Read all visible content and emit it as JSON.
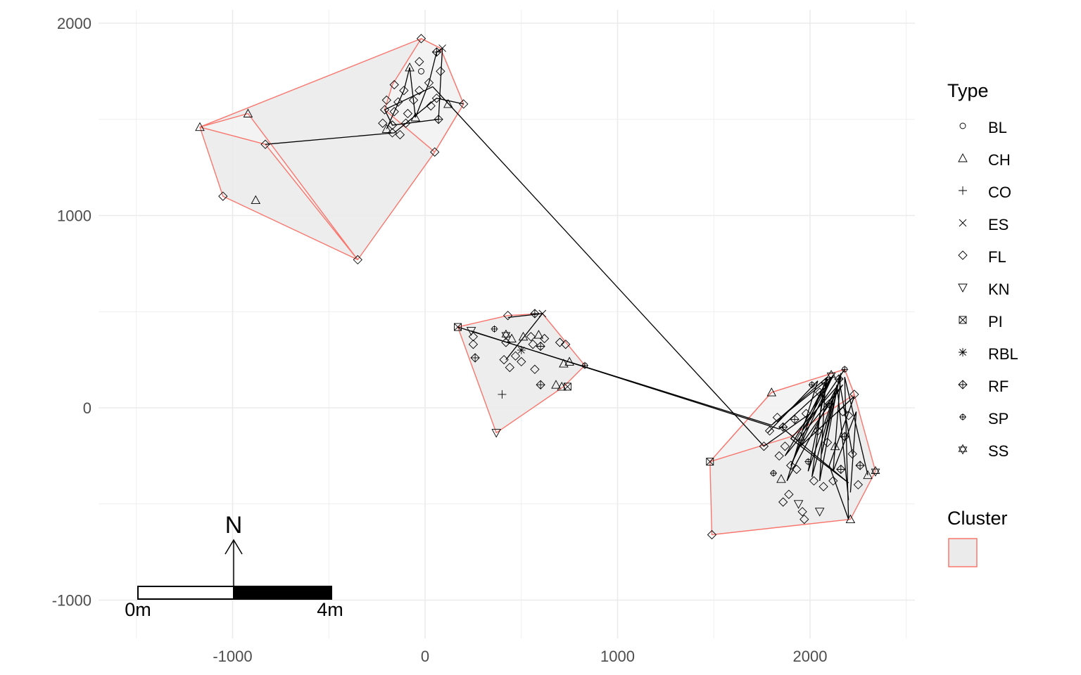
{
  "chart_data": {
    "type": "scatter",
    "title": "",
    "xlabel": "",
    "ylabel": "",
    "xlim": [
      -1670,
      2560
    ],
    "ylim": [
      -1180,
      2080
    ],
    "grid": true,
    "x_ticks": [
      -1000,
      0,
      1000,
      2000
    ],
    "x_tick_labels": [
      "-1000",
      "0",
      "1000",
      "2000"
    ],
    "y_ticks": [
      -1000,
      0,
      1000,
      2000
    ],
    "y_tick_labels": [
      "-1000",
      "0",
      "1000",
      "2000"
    ],
    "legend_position": "right",
    "legend_type_title": "Type",
    "legend_cluster_title": "Cluster",
    "types": [
      {
        "code": "BL",
        "symbol": "circle"
      },
      {
        "code": "CH",
        "symbol": "triangle-up"
      },
      {
        "code": "CO",
        "symbol": "plus"
      },
      {
        "code": "ES",
        "symbol": "cross"
      },
      {
        "code": "FL",
        "symbol": "diamond"
      },
      {
        "code": "KN",
        "symbol": "triangle-down"
      },
      {
        "code": "PI",
        "symbol": "square-cross"
      },
      {
        "code": "RBL",
        "symbol": "asterisk"
      },
      {
        "code": "RF",
        "symbol": "diamond-plus"
      },
      {
        "code": "SP",
        "symbol": "circle-plus"
      },
      {
        "code": "SS",
        "symbol": "star-of-david"
      }
    ],
    "colors": {
      "hull_stroke": "#f8766d",
      "hull_fill": "#ebebeb",
      "hull_fill_light": "#f3f3f3",
      "grid": "#ebebeb",
      "points": "#000000"
    },
    "clusters": [
      {
        "hull": [
          [
            -1170,
            1460
          ],
          [
            -1050,
            1100
          ],
          [
            -350,
            770
          ],
          [
            50,
            1330
          ],
          [
            200,
            1580
          ],
          [
            80,
            1870
          ],
          [
            -20,
            1920
          ]
        ],
        "shade": "dark"
      },
      {
        "hull": [
          [
            -920,
            1530
          ],
          [
            -1170,
            1460
          ],
          [
            -830,
            1370
          ],
          [
            -350,
            770
          ]
        ],
        "shade": "light"
      },
      {
        "hull": [
          [
            -210,
            1550
          ],
          [
            -170,
            1680
          ],
          [
            -20,
            1920
          ],
          [
            80,
            1870
          ],
          [
            200,
            1580
          ],
          [
            50,
            1330
          ]
        ],
        "shade": "light"
      },
      {
        "hull": [
          [
            170,
            420
          ],
          [
            430,
            480
          ],
          [
            610,
            490
          ],
          [
            830,
            220
          ],
          [
            720,
            110
          ],
          [
            370,
            -130
          ]
        ],
        "shade": "dark"
      },
      {
        "hull": [
          [
            1480,
            -280
          ],
          [
            1490,
            -660
          ],
          [
            2210,
            -580
          ],
          [
            2340,
            -330
          ],
          [
            2230,
            70
          ],
          [
            2180,
            200
          ],
          [
            2020,
            150
          ],
          [
            1800,
            80
          ]
        ],
        "shade": "dark"
      },
      {
        "hull": [
          [
            1480,
            -280
          ],
          [
            1800,
            80
          ],
          [
            2020,
            150
          ],
          [
            2180,
            200
          ],
          [
            2230,
            70
          ],
          [
            1900,
            -150
          ]
        ],
        "shade": "light"
      }
    ],
    "points": [
      {
        "x": -1170,
        "y": 1460,
        "type": "CH"
      },
      {
        "x": -920,
        "y": 1530,
        "type": "CH"
      },
      {
        "x": -830,
        "y": 1370,
        "type": "FL"
      },
      {
        "x": -1050,
        "y": 1100,
        "type": "FL"
      },
      {
        "x": -880,
        "y": 1080,
        "type": "CH"
      },
      {
        "x": -350,
        "y": 770,
        "type": "FL"
      },
      {
        "x": -20,
        "y": 1920,
        "type": "FL"
      },
      {
        "x": 60,
        "y": 1850,
        "type": "RF"
      },
      {
        "x": 90,
        "y": 1870,
        "type": "ES"
      },
      {
        "x": -30,
        "y": 1800,
        "type": "FL"
      },
      {
        "x": -80,
        "y": 1770,
        "type": "CH"
      },
      {
        "x": -20,
        "y": 1750,
        "type": "BL"
      },
      {
        "x": 80,
        "y": 1750,
        "type": "FL"
      },
      {
        "x": -160,
        "y": 1680,
        "type": "FL"
      },
      {
        "x": -110,
        "y": 1650,
        "type": "FL"
      },
      {
        "x": -30,
        "y": 1650,
        "type": "FL"
      },
      {
        "x": 20,
        "y": 1690,
        "type": "FL"
      },
      {
        "x": -200,
        "y": 1600,
        "type": "FL"
      },
      {
        "x": -140,
        "y": 1590,
        "type": "FL"
      },
      {
        "x": -60,
        "y": 1600,
        "type": "FL"
      },
      {
        "x": 60,
        "y": 1610,
        "type": "FL"
      },
      {
        "x": 200,
        "y": 1580,
        "type": "FL"
      },
      {
        "x": 120,
        "y": 1580,
        "type": "CH"
      },
      {
        "x": -210,
        "y": 1550,
        "type": "FL"
      },
      {
        "x": -160,
        "y": 1540,
        "type": "FL"
      },
      {
        "x": -90,
        "y": 1530,
        "type": "FL"
      },
      {
        "x": 30,
        "y": 1570,
        "type": "FL"
      },
      {
        "x": -220,
        "y": 1480,
        "type": "FL"
      },
      {
        "x": -170,
        "y": 1470,
        "type": "FL"
      },
      {
        "x": -100,
        "y": 1480,
        "type": "FL"
      },
      {
        "x": -50,
        "y": 1510,
        "type": "CH"
      },
      {
        "x": 70,
        "y": 1500,
        "type": "RF"
      },
      {
        "x": -200,
        "y": 1450,
        "type": "CH"
      },
      {
        "x": -130,
        "y": 1420,
        "type": "FL"
      },
      {
        "x": -170,
        "y": 1430,
        "type": "FL"
      },
      {
        "x": 50,
        "y": 1330,
        "type": "FL"
      },
      {
        "x": 170,
        "y": 420,
        "type": "PI"
      },
      {
        "x": 240,
        "y": 400,
        "type": "KN"
      },
      {
        "x": 360,
        "y": 410,
        "type": "SP"
      },
      {
        "x": 430,
        "y": 480,
        "type": "FL"
      },
      {
        "x": 570,
        "y": 490,
        "type": "RF"
      },
      {
        "x": 610,
        "y": 490,
        "type": "ES"
      },
      {
        "x": 250,
        "y": 370,
        "type": "FL"
      },
      {
        "x": 250,
        "y": 330,
        "type": "FL"
      },
      {
        "x": 260,
        "y": 260,
        "type": "RF"
      },
      {
        "x": 420,
        "y": 380,
        "type": "SS"
      },
      {
        "x": 450,
        "y": 360,
        "type": "CH"
      },
      {
        "x": 420,
        "y": 340,
        "type": "FL"
      },
      {
        "x": 510,
        "y": 370,
        "type": "CH"
      },
      {
        "x": 550,
        "y": 370,
        "type": "FL"
      },
      {
        "x": 590,
        "y": 380,
        "type": "CH"
      },
      {
        "x": 620,
        "y": 360,
        "type": "FL"
      },
      {
        "x": 560,
        "y": 330,
        "type": "FL"
      },
      {
        "x": 600,
        "y": 320,
        "type": "RF"
      },
      {
        "x": 700,
        "y": 340,
        "type": "FL"
      },
      {
        "x": 730,
        "y": 330,
        "type": "FL"
      },
      {
        "x": 500,
        "y": 300,
        "type": "RBL"
      },
      {
        "x": 470,
        "y": 270,
        "type": "FL"
      },
      {
        "x": 410,
        "y": 250,
        "type": "FL"
      },
      {
        "x": 500,
        "y": 240,
        "type": "FL"
      },
      {
        "x": 440,
        "y": 210,
        "type": "FL"
      },
      {
        "x": 570,
        "y": 200,
        "type": "FL"
      },
      {
        "x": 720,
        "y": 230,
        "type": "CH"
      },
      {
        "x": 750,
        "y": 240,
        "type": "CH"
      },
      {
        "x": 830,
        "y": 220,
        "type": "SP"
      },
      {
        "x": 600,
        "y": 120,
        "type": "RF"
      },
      {
        "x": 680,
        "y": 120,
        "type": "CH"
      },
      {
        "x": 710,
        "y": 110,
        "type": "CH"
      },
      {
        "x": 740,
        "y": 110,
        "type": "PI"
      },
      {
        "x": 400,
        "y": 70,
        "type": "CO"
      },
      {
        "x": 370,
        "y": -130,
        "type": "KN"
      },
      {
        "x": 1480,
        "y": -280,
        "type": "PI"
      },
      {
        "x": 1490,
        "y": -660,
        "type": "FL"
      },
      {
        "x": 1800,
        "y": 80,
        "type": "CH"
      },
      {
        "x": 2180,
        "y": 200,
        "type": "SP"
      },
      {
        "x": 2230,
        "y": 70,
        "type": "FL"
      },
      {
        "x": 2340,
        "y": -330,
        "type": "SS"
      },
      {
        "x": 2210,
        "y": -580,
        "type": "CH"
      },
      {
        "x": 1830,
        "y": -50,
        "type": "FL"
      },
      {
        "x": 1860,
        "y": -100,
        "type": "RF"
      },
      {
        "x": 1790,
        "y": -120,
        "type": "FL"
      },
      {
        "x": 1760,
        "y": -200,
        "type": "FL"
      },
      {
        "x": 1870,
        "y": -200,
        "type": "FL"
      },
      {
        "x": 1900,
        "y": -300,
        "type": "FL"
      },
      {
        "x": 1930,
        "y": -320,
        "type": "FL"
      },
      {
        "x": 1810,
        "y": -340,
        "type": "SP"
      },
      {
        "x": 1850,
        "y": -370,
        "type": "CH"
      },
      {
        "x": 1980,
        "y": -30,
        "type": "FL"
      },
      {
        "x": 2050,
        "y": 80,
        "type": "FL"
      },
      {
        "x": 2080,
        "y": 130,
        "type": "RF"
      },
      {
        "x": 2110,
        "y": 170,
        "type": "SS"
      },
      {
        "x": 2150,
        "y": 150,
        "type": "RF"
      },
      {
        "x": 2040,
        "y": -120,
        "type": "FL"
      },
      {
        "x": 2090,
        "y": -180,
        "type": "FL"
      },
      {
        "x": 2130,
        "y": -200,
        "type": "CH"
      },
      {
        "x": 2180,
        "y": -150,
        "type": "RF"
      },
      {
        "x": 2220,
        "y": -240,
        "type": "FL"
      },
      {
        "x": 2260,
        "y": -300,
        "type": "RF"
      },
      {
        "x": 2020,
        "y": -380,
        "type": "FL"
      },
      {
        "x": 2070,
        "y": -410,
        "type": "FL"
      },
      {
        "x": 2120,
        "y": -380,
        "type": "FL"
      },
      {
        "x": 1890,
        "y": -450,
        "type": "FL"
      },
      {
        "x": 1860,
        "y": -490,
        "type": "FL"
      },
      {
        "x": 1940,
        "y": -500,
        "type": "KN"
      },
      {
        "x": 1960,
        "y": -540,
        "type": "FL"
      },
      {
        "x": 1970,
        "y": -580,
        "type": "FL"
      },
      {
        "x": 2050,
        "y": -540,
        "type": "KN"
      },
      {
        "x": 1990,
        "y": -280,
        "type": "SP"
      },
      {
        "x": 2160,
        "y": -320,
        "type": "RF"
      },
      {
        "x": 2300,
        "y": -350,
        "type": "CH"
      },
      {
        "x": 2250,
        "y": -400,
        "type": "FL"
      },
      {
        "x": 2200,
        "y": -40,
        "type": "FL"
      },
      {
        "x": 2010,
        "y": 120,
        "type": "SP"
      },
      {
        "x": 2100,
        "y": 20,
        "type": "RF"
      },
      {
        "x": 2170,
        "y": -20,
        "type": "FL"
      },
      {
        "x": 1950,
        "y": -150,
        "type": "CH"
      },
      {
        "x": 1840,
        "y": -250,
        "type": "FL"
      },
      {
        "x": 1920,
        "y": -60,
        "type": "RF"
      }
    ],
    "paths": [
      [
        [
          -830,
          1370
        ],
        [
          -160,
          1430
        ],
        [
          60,
          1610
        ],
        [
          200,
          1580
        ]
      ],
      [
        [
          -200,
          1450
        ],
        [
          -110,
          1650
        ],
        [
          -80,
          1770
        ],
        [
          -50,
          1510
        ],
        [
          20,
          1690
        ],
        [
          60,
          1850
        ],
        [
          90,
          1870
        ],
        [
          70,
          1500
        ],
        [
          -170,
          1470
        ],
        [
          -210,
          1550
        ],
        [
          40,
          1670
        ]
      ],
      [
        [
          40,
          1670
        ],
        [
          1760,
          -200
        ],
        [
          2000,
          -30
        ],
        [
          2080,
          130
        ],
        [
          2050,
          -380
        ],
        [
          2150,
          150
        ],
        [
          2220,
          -240
        ]
      ],
      [
        [
          170,
          420
        ],
        [
          1800,
          -90
        ],
        [
          2090,
          160
        ],
        [
          1900,
          -300
        ],
        [
          2120,
          170
        ],
        [
          1960,
          -120
        ],
        [
          2180,
          200
        ]
      ],
      [
        [
          240,
          400
        ],
        [
          1840,
          -110
        ],
        [
          2070,
          100
        ],
        [
          2010,
          -360
        ],
        [
          2140,
          120
        ],
        [
          2200,
          -480
        ]
      ],
      [
        [
          430,
          470
        ],
        [
          610,
          490
        ],
        [
          420,
          250
        ]
      ],
      [
        [
          1810,
          -80
        ],
        [
          2110,
          160
        ],
        [
          1870,
          -250
        ],
        [
          2170,
          120
        ],
        [
          1950,
          -200
        ],
        [
          2230,
          60
        ],
        [
          2100,
          -300
        ],
        [
          2200,
          -580
        ],
        [
          2180,
          160
        ],
        [
          2300,
          -350
        ]
      ],
      [
        [
          1780,
          -130
        ],
        [
          2040,
          140
        ],
        [
          1880,
          -380
        ],
        [
          2130,
          90
        ],
        [
          2060,
          -240
        ],
        [
          2160,
          180
        ],
        [
          2120,
          -330
        ],
        [
          2240,
          -20
        ],
        [
          2210,
          -440
        ]
      ],
      [
        [
          1850,
          -100
        ],
        [
          2200,
          -390
        ],
        [
          1900,
          -160
        ],
        [
          2140,
          110
        ],
        [
          1990,
          -330
        ],
        [
          2090,
          150
        ]
      ]
    ],
    "scale_bar": {
      "label_start": "0m",
      "label_end": "4m"
    },
    "north_arrow": {
      "label": "N"
    }
  }
}
